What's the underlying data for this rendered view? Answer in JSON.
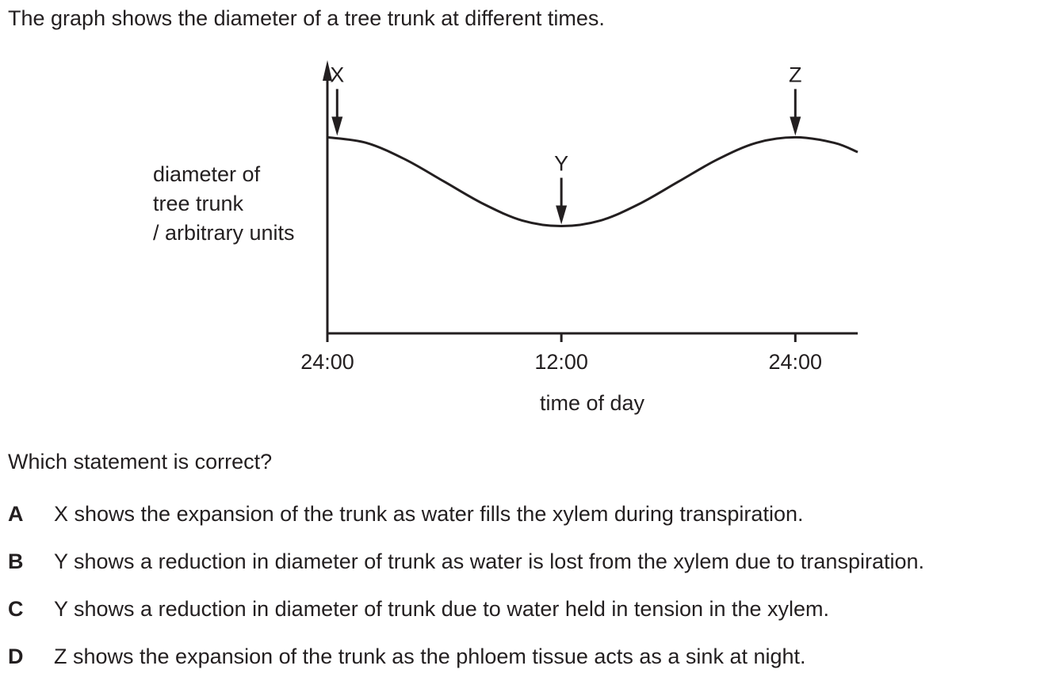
{
  "intro_text": "The graph shows the diameter of a tree trunk at different times.",
  "question_text": "Which statement is correct?",
  "options": [
    {
      "letter": "A",
      "text": "X shows the expansion of the trunk as water fills the xylem during transpiration."
    },
    {
      "letter": "B",
      "text": "Y shows a reduction in diameter of trunk as water is lost from the xylem due to transpiration."
    },
    {
      "letter": "C",
      "text": "Y shows a reduction in diameter of trunk due to water held in tension in the xylem."
    },
    {
      "letter": "D",
      "text": "Z shows the expansion of the trunk as the phloem tissue acts as a sink at night."
    }
  ],
  "chart_data": {
    "type": "line",
    "ylabel_lines": [
      "diameter of",
      "tree trunk",
      "/ arbitrary units"
    ],
    "xlabel": "time of day",
    "x_ticks": [
      {
        "value": 0,
        "label": "24:00"
      },
      {
        "value": 12,
        "label": "12:00"
      },
      {
        "value": 24,
        "label": "24:00"
      }
    ],
    "xlim": [
      0,
      27.2
    ],
    "ylim": [
      0,
      7
    ],
    "grid": false,
    "series": [
      {
        "x": [
          0,
          2,
          4,
          6,
          8,
          10,
          12,
          14,
          16,
          18,
          20,
          22,
          24,
          26,
          27.2
        ],
        "values": [
          5.3,
          5.15,
          4.7,
          4.1,
          3.5,
          3.05,
          2.9,
          3.05,
          3.5,
          4.1,
          4.7,
          5.15,
          5.3,
          5.15,
          4.9
        ]
      }
    ],
    "annotations": [
      {
        "label": "X",
        "x": 0.5,
        "y": 5.3
      },
      {
        "label": "Y",
        "x": 12,
        "y": 2.9
      },
      {
        "label": "Z",
        "x": 24,
        "y": 5.3
      }
    ]
  }
}
